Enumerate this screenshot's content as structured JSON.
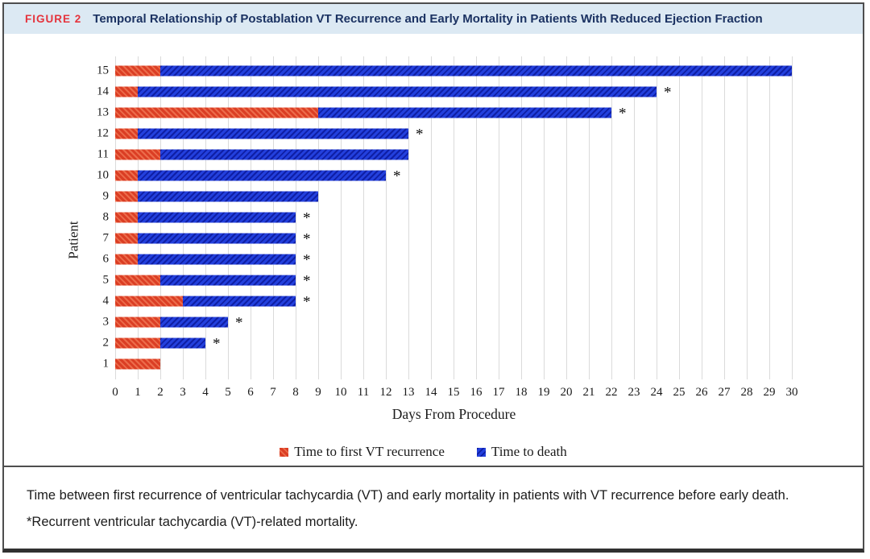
{
  "figure": {
    "label": "FIGURE 2",
    "title": "Temporal Relationship of Postablation VT Recurrence and Early Mortality in Patients With Reduced Ejection Fraction"
  },
  "chart_data": {
    "type": "bar",
    "orientation": "horizontal",
    "stacked": true,
    "title": "",
    "ylabel": "Patient",
    "xlabel": "Days From Procedure",
    "xlim": [
      0,
      30
    ],
    "xticks": [
      0,
      1,
      2,
      3,
      4,
      5,
      6,
      7,
      8,
      9,
      10,
      11,
      12,
      13,
      14,
      15,
      16,
      17,
      18,
      19,
      20,
      21,
      22,
      23,
      24,
      25,
      26,
      27,
      28,
      29,
      30
    ],
    "grid": "vertical",
    "legend_position": "bottom-center",
    "categories": [
      15,
      14,
      13,
      12,
      11,
      10,
      9,
      8,
      7,
      6,
      5,
      4,
      3,
      2,
      1
    ],
    "series": [
      {
        "name": "Time to first VT recurrence",
        "color": "#db3e24",
        "values": [
          2,
          1,
          9,
          1,
          2,
          1,
          1,
          1,
          1,
          1,
          2,
          3,
          2,
          2,
          2
        ]
      },
      {
        "name": "Time to death",
        "color": "#2340dd",
        "values": [
          30,
          24,
          22,
          13,
          13,
          12,
          9,
          8,
          8,
          8,
          8,
          8,
          5,
          4,
          null
        ]
      }
    ],
    "asterisk_marks": [
      false,
      true,
      true,
      true,
      false,
      true,
      false,
      true,
      true,
      true,
      true,
      true,
      true,
      true,
      false
    ],
    "asterisk_symbol": "*"
  },
  "caption": "Time between first recurrence of ventricular tachycardia (VT) and early mortality in patients with VT recurrence before early death. *Recurrent ventricular tachycardia (VT)-related mortality.",
  "colors": {
    "header_bg": "#dce9f3",
    "figure_label_red": "#e5333c",
    "title_navy": "#1b3262",
    "bar_red": "#db3e24",
    "bar_red_stripe": "#ec6c4b",
    "bar_blue": "#2340dd",
    "bar_blue_stripe": "#0f1fa5",
    "gridline": "#dadada",
    "border": "#4e4e4e"
  }
}
